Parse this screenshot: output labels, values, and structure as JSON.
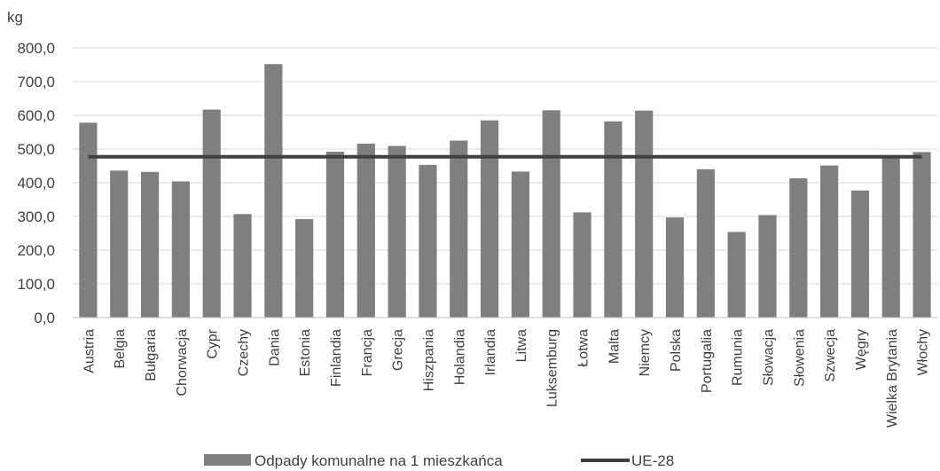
{
  "chart_data": {
    "type": "bar",
    "ylabel": "kg",
    "ylim": [
      0,
      800
    ],
    "yticks": [
      "0,0",
      "100,0",
      "200,0",
      "300,0",
      "400,0",
      "500,0",
      "600,0",
      "700,0",
      "800,0"
    ],
    "grid": true,
    "legend_position": "bottom",
    "categories": [
      "Austria",
      "Belgia",
      "Bułgaria",
      "Chorwacja",
      "Cypr",
      "Czechy",
      "Dania",
      "Estonia",
      "Finlandia",
      "Francja",
      "Grecja",
      "Hiszpania",
      "Holandia",
      "Irlandia",
      "Litwa",
      "Luksemburg",
      "Łotwa",
      "Malta",
      "Niemcy",
      "Polska",
      "Portugalia",
      "Rumunia",
      "Słowacja",
      "Słowenia",
      "Szwecja",
      "Węgry",
      "Wielka Brytania",
      "Włochy"
    ],
    "series": [
      {
        "name": "Odpady komunalne na 1 mieszkańca",
        "kind": "bar",
        "color": "#7f7f7f",
        "values": [
          578,
          436,
          432,
          404,
          617,
          307,
          752,
          292,
          492,
          516,
          509,
          453,
          525,
          585,
          433,
          615,
          312,
          582,
          614,
          297,
          440,
          254,
          304,
          413,
          451,
          377,
          482,
          491
        ]
      },
      {
        "name": "UE-28",
        "kind": "line",
        "color": "#404040",
        "value": 477
      }
    ]
  }
}
